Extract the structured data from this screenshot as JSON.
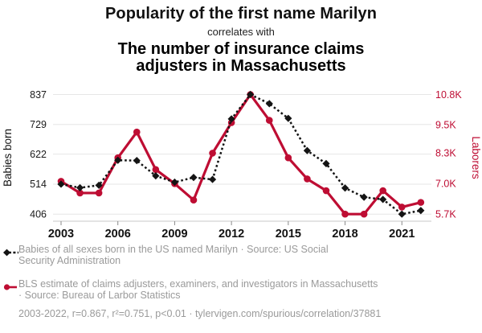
{
  "header": {
    "title": "Popularity of the first name Marilyn",
    "connector": "correlates with",
    "subtitle_line1": "The number of insurance claims",
    "subtitle_line2": "adjusters in Massachusetts"
  },
  "colors": {
    "accent_red": "#be0d33",
    "series_black": "#141414",
    "legend_gray": "#9a9a9a",
    "gridline": "#e6e6e6",
    "axis_line": "#c9c9c9"
  },
  "chart_data": {
    "type": "line",
    "x": [
      2003,
      2004,
      2005,
      2006,
      2007,
      2008,
      2009,
      2010,
      2011,
      2012,
      2013,
      2014,
      2015,
      2016,
      2017,
      2018,
      2019,
      2020,
      2021,
      2022
    ],
    "x_ticks": [
      2003,
      2006,
      2009,
      2012,
      2015,
      2018,
      2021
    ],
    "grid": "horizontal",
    "legend_position": "below",
    "left_axis": {
      "label": "Babies born",
      "ticks": [
        406,
        514,
        622,
        729,
        837
      ],
      "range": [
        406,
        837
      ]
    },
    "right_axis": {
      "label": "Laborers",
      "tick_values": [
        5.7,
        7.0,
        8.3,
        9.5,
        10.8
      ],
      "tick_labels": [
        "5.7K",
        "7.0K",
        "8.3K",
        "9.5K",
        "10.8K"
      ],
      "range": [
        5.7,
        10.8
      ]
    },
    "series": [
      {
        "name": "Babies of all sexes born in the US named Marilyn",
        "axis": "left",
        "style": "dashed-diamond",
        "color": "#141414",
        "values": [
          514,
          501,
          510,
          600,
          599,
          544,
          521,
          538,
          531,
          749,
          837,
          804,
          751,
          635,
          588,
          500,
          467,
          459,
          406,
          419
        ]
      },
      {
        "name": "BLS estimate of claims adjusters, examiners, and investigators in Massachusetts",
        "axis": "right",
        "style": "solid-circle",
        "color": "#be0d33",
        "values": [
          7.1,
          6.6,
          6.6,
          8.1,
          9.2,
          7.6,
          7.0,
          6.3,
          8.3,
          9.6,
          10.8,
          9.7,
          8.1,
          7.2,
          6.7,
          5.7,
          5.7,
          6.7,
          6.0,
          6.2
        ]
      }
    ]
  },
  "legend": [
    {
      "marker": "black-diamond-dashed",
      "line1": "Babies of all sexes born in the US named Marilyn · Source: US Social",
      "line2": "Security Administration"
    },
    {
      "marker": "red-circle-solid",
      "line1": "BLS estimate of claims adjusters, examiners, and investigators in Massachusetts",
      "line2": "· Source: Bureau of Larbor Statistics"
    }
  ],
  "footer": {
    "text": "2003-2022, r=0.867, r²=0.751, p<0.01 · tylervigen.com/spurious/correlation/37881"
  }
}
